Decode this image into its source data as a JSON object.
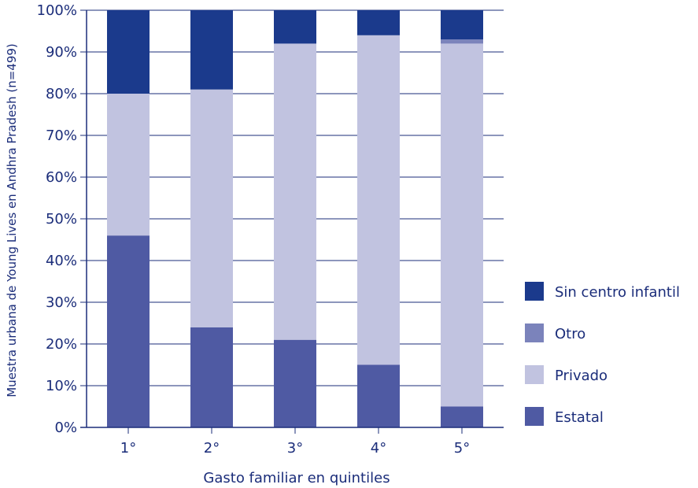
{
  "chart_data": {
    "type": "bar",
    "stacked": true,
    "orientation": "vertical",
    "categories": [
      "1°",
      "2°",
      "3°",
      "4°",
      "5°"
    ],
    "series": [
      {
        "name": "Estatal",
        "color": "#4f5aa3",
        "values": [
          46,
          24,
          21,
          15,
          5
        ]
      },
      {
        "name": "Privado",
        "color": "#c1c3e0",
        "values": [
          34,
          57,
          71,
          79,
          87
        ]
      },
      {
        "name": "Otro",
        "color": "#7b83bb",
        "values": [
          0,
          0,
          0,
          0,
          1
        ]
      },
      {
        "name": "Sin centro infantil",
        "color": "#1b3a8c",
        "values": [
          20,
          19,
          8,
          6,
          7
        ]
      }
    ],
    "xlabel": "Gasto familiar en quintiles",
    "ylabel": "Muestra urbana de Young Lives en Andhra Pradesh (n=499)",
    "ylim": [
      0,
      100
    ],
    "y_ticks": [
      "0%",
      "10%",
      "20%",
      "30%",
      "40%",
      "50%",
      "60%",
      "70%",
      "80%",
      "90%",
      "100%"
    ],
    "grid": true,
    "legend_position": "right",
    "legend_order": [
      "Sin centro infantil",
      "Otro",
      "Privado",
      "Estatal"
    ]
  }
}
